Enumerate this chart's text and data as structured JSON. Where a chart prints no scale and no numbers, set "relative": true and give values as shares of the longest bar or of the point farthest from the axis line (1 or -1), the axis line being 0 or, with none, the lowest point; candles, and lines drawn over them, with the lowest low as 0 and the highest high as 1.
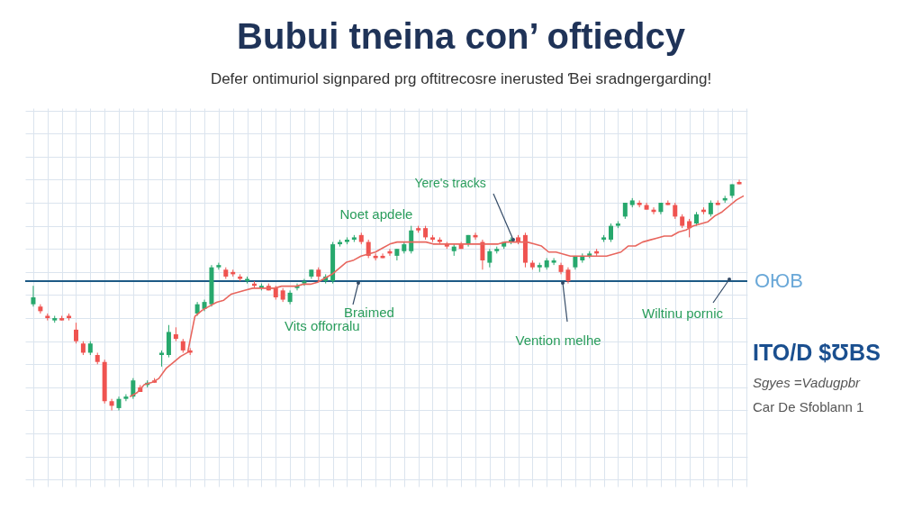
{
  "chart_data": [
    {
      "type": "candlestick",
      "title": "Bubui tneina con’ oftiedcy",
      "subtitle": "Defer ontimuriol signpared prg oftitrecosre inerusted Ɓei sradngergarding!",
      "relative": true,
      "grid": true,
      "categories": [
        null,
        null,
        null,
        null,
        null,
        null,
        null,
        null,
        null,
        null,
        null,
        null,
        null,
        null,
        null,
        null,
        null,
        null,
        null,
        null,
        null,
        null,
        null,
        null,
        null,
        null,
        null,
        null,
        null,
        null,
        null,
        null,
        null,
        null,
        null,
        null,
        null,
        null,
        null,
        null,
        null,
        null,
        null,
        null,
        null,
        null,
        null,
        null,
        null,
        null,
        null,
        null,
        null,
        null,
        null,
        null,
        null,
        null,
        null,
        null,
        null,
        null,
        null,
        null,
        null,
        null,
        null,
        null,
        null,
        null,
        null,
        null,
        null,
        null,
        null,
        null,
        null,
        null,
        null,
        null,
        null,
        null,
        null,
        null,
        null,
        null,
        null,
        null,
        null,
        null,
        null,
        null,
        null,
        null,
        null,
        null,
        null,
        null,
        null,
        null
      ],
      "ohlc": [
        [
          0.46,
          0.54,
          0.45,
          0.49
        ],
        [
          0.45,
          0.46,
          0.42,
          0.43
        ],
        [
          0.41,
          0.42,
          0.39,
          0.4
        ],
        [
          0.39,
          0.41,
          0.38,
          0.4
        ],
        [
          0.4,
          0.41,
          0.39,
          0.39
        ],
        [
          0.41,
          0.42,
          0.39,
          0.4
        ],
        [
          0.35,
          0.38,
          0.29,
          0.3
        ],
        [
          0.29,
          0.3,
          0.24,
          0.25
        ],
        [
          0.25,
          0.3,
          0.24,
          0.29
        ],
        [
          0.24,
          0.25,
          0.2,
          0.21
        ],
        [
          0.21,
          0.22,
          0.03,
          0.04
        ],
        [
          0.04,
          0.05,
          0,
          0.02
        ],
        [
          0.01,
          0.06,
          0,
          0.05
        ],
        [
          0.05,
          0.07,
          0.04,
          0.06
        ],
        [
          0.06,
          0.14,
          0.05,
          0.13
        ],
        [
          0.1,
          0.11,
          0.08,
          0.08
        ],
        [
          0.11,
          0.13,
          0.1,
          0.12
        ],
        [
          0.13,
          0.14,
          0.12,
          0.12
        ],
        [
          0.24,
          0.26,
          0.19,
          0.25
        ],
        [
          0.24,
          0.37,
          0.23,
          0.34
        ],
        [
          0.33,
          0.36,
          0.3,
          0.31
        ],
        [
          0.3,
          0.31,
          0.25,
          0.26
        ],
        [
          0.26,
          0.27,
          0.24,
          0.25
        ],
        [
          0.42,
          0.47,
          0.41,
          0.46
        ],
        [
          0.44,
          0.48,
          0.43,
          0.47
        ],
        [
          0.46,
          0.63,
          0.45,
          0.62
        ],
        [
          0.62,
          0.64,
          0.61,
          0.63
        ],
        [
          0.61,
          0.62,
          0.57,
          0.58
        ],
        [
          0.6,
          0.61,
          0.58,
          0.59
        ],
        [
          0.58,
          0.59,
          0.56,
          0.57
        ],
        [
          0.56,
          0.58,
          0.55,
          0.57
        ],
        [
          0.55,
          0.56,
          0.53,
          0.54
        ],
        [
          0.53,
          0.55,
          0.52,
          0.54
        ],
        [
          0.54,
          0.55,
          0.52,
          0.52
        ],
        [
          0.53,
          0.54,
          0.48,
          0.49
        ],
        [
          0.52,
          0.53,
          0.47,
          0.48
        ],
        [
          0.47,
          0.52,
          0.46,
          0.51
        ],
        [
          0.53,
          0.55,
          0.52,
          0.54
        ],
        [
          0.55,
          0.57,
          0.54,
          0.56
        ],
        [
          0.58,
          0.61,
          0.57,
          0.61
        ],
        [
          0.61,
          0.62,
          0.56,
          0.58
        ],
        [
          0.56,
          0.59,
          0.55,
          0.58
        ],
        [
          0.56,
          0.73,
          0.55,
          0.72
        ],
        [
          0.72,
          0.74,
          0.71,
          0.73
        ],
        [
          0.73,
          0.75,
          0.72,
          0.74
        ],
        [
          0.74,
          0.76,
          0.73,
          0.75
        ],
        [
          0.76,
          0.77,
          0.72,
          0.73
        ],
        [
          0.73,
          0.74,
          0.66,
          0.67
        ],
        [
          0.67,
          0.68,
          0.65,
          0.66
        ],
        [
          0.67,
          0.68,
          0.66,
          0.66
        ],
        [
          0.69,
          0.7,
          0.67,
          0.68
        ],
        [
          0.67,
          0.7,
          0.65,
          0.7
        ],
        [
          0.69,
          0.73,
          0.68,
          0.72
        ],
        [
          0.69,
          0.8,
          0.68,
          0.78
        ],
        [
          0.79,
          0.8,
          0.77,
          0.78
        ],
        [
          0.79,
          0.8,
          0.74,
          0.75
        ],
        [
          0.75,
          0.76,
          0.73,
          0.74
        ],
        [
          0.74,
          0.75,
          0.72,
          0.73
        ],
        [
          0.72,
          0.73,
          0.7,
          0.71
        ],
        [
          0.69,
          0.72,
          0.67,
          0.71
        ],
        [
          0.72,
          0.73,
          0.7,
          0.7
        ],
        [
          0.72,
          0.76,
          0.71,
          0.76
        ],
        [
          0.76,
          0.77,
          0.74,
          0.75
        ],
        [
          0.73,
          0.74,
          0.61,
          0.65
        ],
        [
          0.64,
          0.7,
          0.62,
          0.69
        ],
        [
          0.69,
          0.71,
          0.68,
          0.7
        ],
        [
          0.71,
          0.73,
          0.7,
          0.73
        ],
        [
          0.73,
          0.75,
          0.72,
          0.74
        ],
        [
          0.75,
          0.76,
          0.72,
          0.73
        ],
        [
          0.76,
          0.77,
          0.62,
          0.64
        ],
        [
          0.64,
          0.65,
          0.61,
          0.62
        ],
        [
          0.62,
          0.64,
          0.6,
          0.63
        ],
        [
          0.62,
          0.66,
          0.61,
          0.65
        ],
        [
          0.64,
          0.66,
          0.63,
          0.65
        ],
        [
          0.63,
          0.64,
          0.59,
          0.6
        ],
        [
          0.61,
          0.62,
          0.55,
          0.56
        ],
        [
          0.62,
          0.67,
          0.61,
          0.67
        ],
        [
          0.65,
          0.68,
          0.64,
          0.67
        ],
        [
          0.67,
          0.69,
          0.66,
          0.68
        ],
        [
          0.69,
          0.7,
          0.67,
          0.68
        ],
        [
          0.74,
          0.76,
          0.73,
          0.75
        ],
        [
          0.74,
          0.81,
          0.73,
          0.8
        ],
        [
          0.8,
          0.82,
          0.79,
          0.81
        ],
        [
          0.84,
          0.9,
          0.83,
          0.9
        ],
        [
          0.89,
          0.92,
          0.88,
          0.91
        ],
        [
          0.9,
          0.91,
          0.88,
          0.89
        ],
        [
          0.89,
          0.9,
          0.87,
          0.87
        ],
        [
          0.87,
          0.88,
          0.85,
          0.86
        ],
        [
          0.86,
          0.9,
          0.85,
          0.9
        ],
        [
          0.9,
          0.91,
          0.89,
          0.89
        ],
        [
          0.89,
          0.9,
          0.83,
          0.84
        ],
        [
          0.84,
          0.85,
          0.79,
          0.8
        ],
        [
          0.82,
          0.83,
          0.75,
          0.79
        ],
        [
          0.81,
          0.86,
          0.8,
          0.85
        ],
        [
          0.87,
          0.88,
          0.85,
          0.86
        ],
        [
          0.85,
          0.91,
          0.84,
          0.9
        ],
        [
          0.9,
          0.91,
          0.89,
          0.89
        ],
        [
          0.91,
          0.93,
          0.9,
          0.92
        ],
        [
          0.93,
          0.98,
          0.92,
          0.98
        ],
        [
          0.99,
          1,
          0.98,
          0.98
        ]
      ],
      "ref_lines": [
        {
          "axis": "y",
          "value": 0.56,
          "label": "OЮB",
          "color": "#1d5a85"
        }
      ],
      "annotations": [
        "Yere's tracks",
        "Noet apdele",
        "Braimed",
        "Vits offorralu",
        "Vention melhe",
        "Wiltinu pornic",
        "ITO/D $ƱBS",
        "Sgyes =Vadugpbr",
        "Car De Sfoblann 1"
      ]
    },
    {
      "type": "line",
      "relative": true,
      "color": "#e8665e",
      "categories": [
        null,
        null,
        null,
        null,
        null,
        null,
        null,
        null,
        null,
        null,
        null,
        null,
        null,
        null,
        null,
        null,
        null,
        null,
        null,
        null,
        null,
        null,
        null,
        null,
        null,
        null,
        null,
        null,
        null,
        null,
        null,
        null,
        null,
        null,
        null,
        null,
        null,
        null,
        null,
        null,
        null,
        null,
        null,
        null,
        null,
        null,
        null,
        null,
        null,
        null,
        null,
        null,
        null,
        null,
        null,
        null,
        null,
        null,
        null,
        null,
        null,
        null,
        null,
        null,
        null,
        null,
        null,
        null,
        null,
        null,
        null,
        null,
        null,
        null,
        null,
        null,
        null,
        null,
        null,
        null,
        null,
        null,
        null,
        null,
        null,
        null
      ],
      "values": [
        0,
        0.02,
        0.06,
        0.07,
        0.09,
        0.14,
        0.17,
        0.2,
        0.22,
        0.4,
        0.43,
        0.45,
        0.47,
        0.48,
        0.51,
        0.52,
        0.53,
        0.54,
        0.54,
        0.54,
        0.54,
        0.55,
        0.55,
        0.55,
        0.56,
        0.56,
        0.57,
        0.59,
        0.61,
        0.64,
        0.67,
        0.68,
        0.7,
        0.71,
        0.72,
        0.74,
        0.76,
        0.77,
        0.77,
        0.77,
        0.77,
        0.77,
        0.76,
        0.76,
        0.76,
        0.76,
        0.76,
        0.76,
        0.76,
        0.76,
        0.76,
        0.76,
        0.77,
        0.77,
        0.77,
        0.77,
        0.76,
        0.75,
        0.72,
        0.72,
        0.71,
        0.7,
        0.7,
        0.7,
        0.7,
        0.7,
        0.7,
        0.71,
        0.72,
        0.75,
        0.75,
        0.77,
        0.78,
        0.79,
        0.8,
        0.8,
        0.82,
        0.83,
        0.85,
        0.86,
        0.87,
        0.9,
        0.92,
        0.95,
        0.98,
        1
      ]
    }
  ]
}
